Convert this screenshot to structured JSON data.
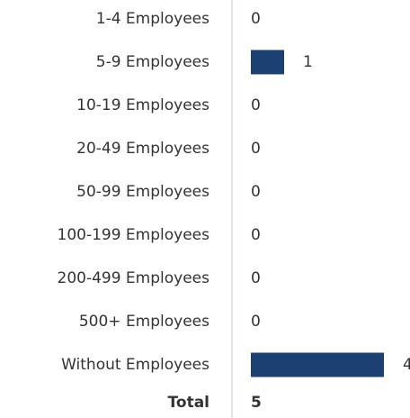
{
  "chart_data": {
    "type": "bar",
    "orientation": "horizontal",
    "categories": [
      "1-4 Employees",
      "5-9 Employees",
      "10-19 Employees",
      "20-49 Employees",
      "50-99 Employees",
      "100-199 Employees",
      "200-499 Employees",
      "500+ Employees",
      "Without Employees"
    ],
    "values": [
      0,
      1,
      0,
      0,
      0,
      0,
      0,
      0,
      4
    ],
    "color": "#1c4071",
    "total": {
      "label": "Total",
      "value": 5
    }
  }
}
